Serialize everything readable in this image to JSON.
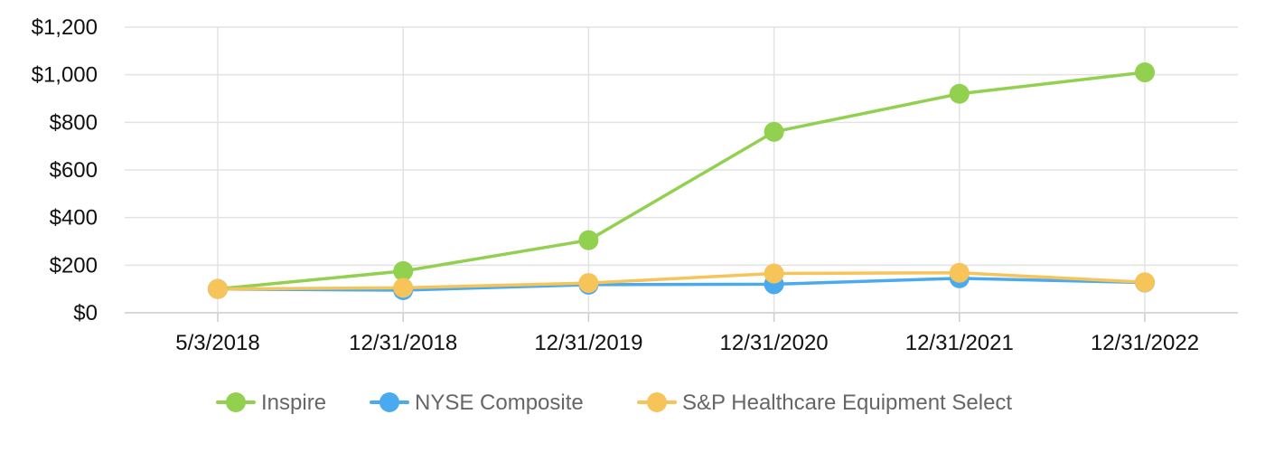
{
  "chart_data": {
    "type": "line",
    "title": "",
    "xlabel": "",
    "ylabel": "",
    "categories": [
      "5/3/2018",
      "12/31/2018",
      "12/31/2019",
      "12/31/2020",
      "12/31/2021",
      "12/31/2022"
    ],
    "ylim": [
      0,
      1200
    ],
    "y_ticks": [
      0,
      200,
      400,
      600,
      800,
      1000,
      1200
    ],
    "y_tick_labels": [
      "$0",
      "$200",
      "$400",
      "$600",
      "$800",
      "$1,000",
      "$1,200"
    ],
    "grid": true,
    "legend_position": "bottom",
    "series": [
      {
        "name": "Inspire",
        "color": "#92d050",
        "values": [
          100,
          175,
          305,
          760,
          920,
          1010
        ]
      },
      {
        "name": "NYSE Composite",
        "color": "#4aaaf0",
        "values": [
          100,
          95,
          118,
          120,
          145,
          127
        ]
      },
      {
        "name": "S&P Healthcare Equipment Select",
        "color": "#f7c45a",
        "values": [
          100,
          105,
          125,
          165,
          168,
          128
        ]
      }
    ]
  }
}
